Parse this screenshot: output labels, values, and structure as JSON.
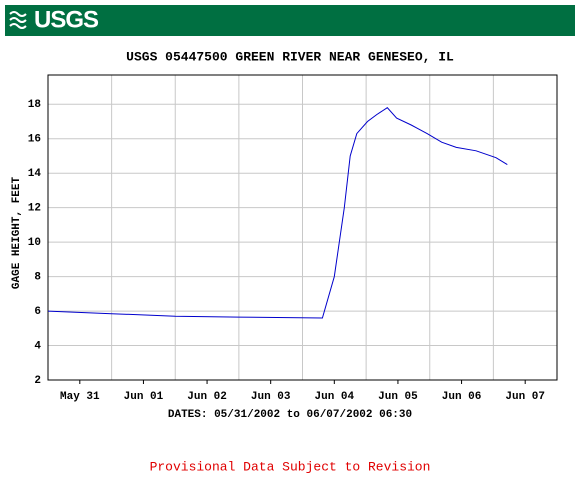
{
  "header": {
    "logo": "USGS"
  },
  "chart_data": {
    "type": "line",
    "title": "USGS 05447500 GREEN RIVER NEAR GENESEO, IL",
    "x_label": "DATES: 05/31/2002 to 06/07/2002 06:30",
    "y_label": "GAGE HEIGHT, FEET",
    "color": "#0000cc",
    "x": [
      "2002-05-31T00:00",
      "2002-06-01T00:00",
      "2002-06-02T00:00",
      "2002-06-03T00:00",
      "2002-06-04T07:30",
      "2002-06-04T12:00",
      "2002-06-04T15:45",
      "2002-06-04T18:00",
      "2002-06-04T20:30",
      "2002-06-05T00:30",
      "2002-06-05T04:00",
      "2002-06-05T08:00",
      "2002-06-05T11:30",
      "2002-06-05T17:00",
      "2002-06-05T23:00",
      "2002-06-06T04:30",
      "2002-06-06T10:00",
      "2002-06-06T17:30",
      "2002-06-07T01:00",
      "2002-06-07T05:15"
    ],
    "values": [
      6.0,
      5.85,
      5.7,
      5.65,
      5.6,
      8.0,
      12.0,
      15.0,
      16.3,
      17.0,
      17.4,
      17.8,
      17.2,
      16.8,
      16.3,
      15.8,
      15.5,
      15.3,
      14.9,
      14.5
    ],
    "xlim": [
      "2002-05-31T00:00",
      "2002-06-08T00:00"
    ],
    "xticks": [
      {
        "value": "2002-05-31T12:00",
        "label": "May 31"
      },
      {
        "value": "2002-06-01T12:00",
        "label": "Jun 01"
      },
      {
        "value": "2002-06-02T12:00",
        "label": "Jun 02"
      },
      {
        "value": "2002-06-03T12:00",
        "label": "Jun 03"
      },
      {
        "value": "2002-06-04T12:00",
        "label": "Jun 04"
      },
      {
        "value": "2002-06-05T12:00",
        "label": "Jun 05"
      },
      {
        "value": "2002-06-06T12:00",
        "label": "Jun 06"
      },
      {
        "value": "2002-06-07T12:00",
        "label": "Jun 07"
      }
    ],
    "xgrid": [
      "2002-06-01T00:00",
      "2002-06-02T00:00",
      "2002-06-03T00:00",
      "2002-06-04T00:00",
      "2002-06-05T00:00",
      "2002-06-06T00:00",
      "2002-06-07T00:00"
    ],
    "ylim": [
      2,
      19.7
    ],
    "yticks": [
      2,
      4,
      6,
      8,
      10,
      12,
      14,
      16,
      18
    ],
    "grid": true
  },
  "footer": "Provisional Data Subject to Revision"
}
